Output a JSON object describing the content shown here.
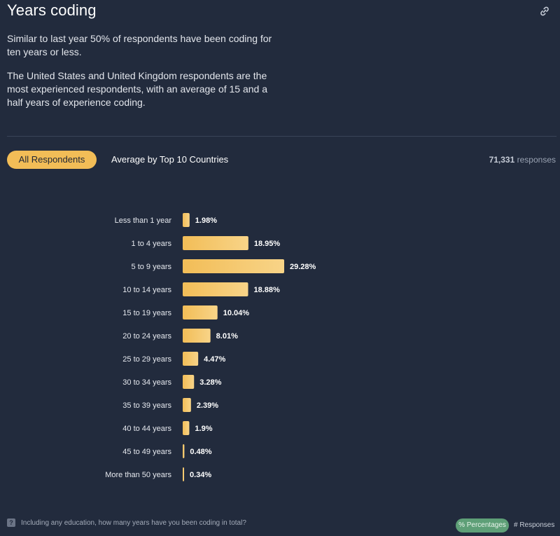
{
  "header": {
    "title": "Years coding",
    "link_icon": "link-icon"
  },
  "description": {
    "p1": "Similar to last year 50% of respondents have been coding for ten years or less.",
    "p2": "The United States and United Kingdom respondents are the most experienced respondents, with an average of 15 and a half years of experience coding."
  },
  "tabs": {
    "active": "All Respondents",
    "other": "Average by Top 10 Countries"
  },
  "responses": {
    "count": "71,331",
    "label": "responses"
  },
  "colors": {
    "bar": "#f2bd57",
    "bar_light": "#f8d488",
    "background": "#222b3d"
  },
  "chart_data": {
    "type": "bar",
    "orientation": "horizontal",
    "categories": [
      "Less than 1 year",
      "1 to 4 years",
      "5 to 9 years",
      "10 to 14 years",
      "15 to 19 years",
      "20 to 24 years",
      "25 to 29 years",
      "30 to 34 years",
      "35 to 39 years",
      "40 to 44 years",
      "45 to 49 years",
      "More than 50 years"
    ],
    "values": [
      1.98,
      18.95,
      29.28,
      18.88,
      10.04,
      8.01,
      4.47,
      3.28,
      2.39,
      1.9,
      0.48,
      0.34
    ],
    "labels": [
      "1.98%",
      "18.95%",
      "29.28%",
      "18.88%",
      "10.04%",
      "8.01%",
      "4.47%",
      "3.28%",
      "2.39%",
      "1.9%",
      "0.48%",
      "0.34%"
    ],
    "xlim": [
      0,
      29.28
    ]
  },
  "footer": {
    "question_icon": "question-icon",
    "question": "Including any education, how many years have you been coding in total?",
    "percentages": "% Percentages",
    "responses": "# Responses"
  }
}
